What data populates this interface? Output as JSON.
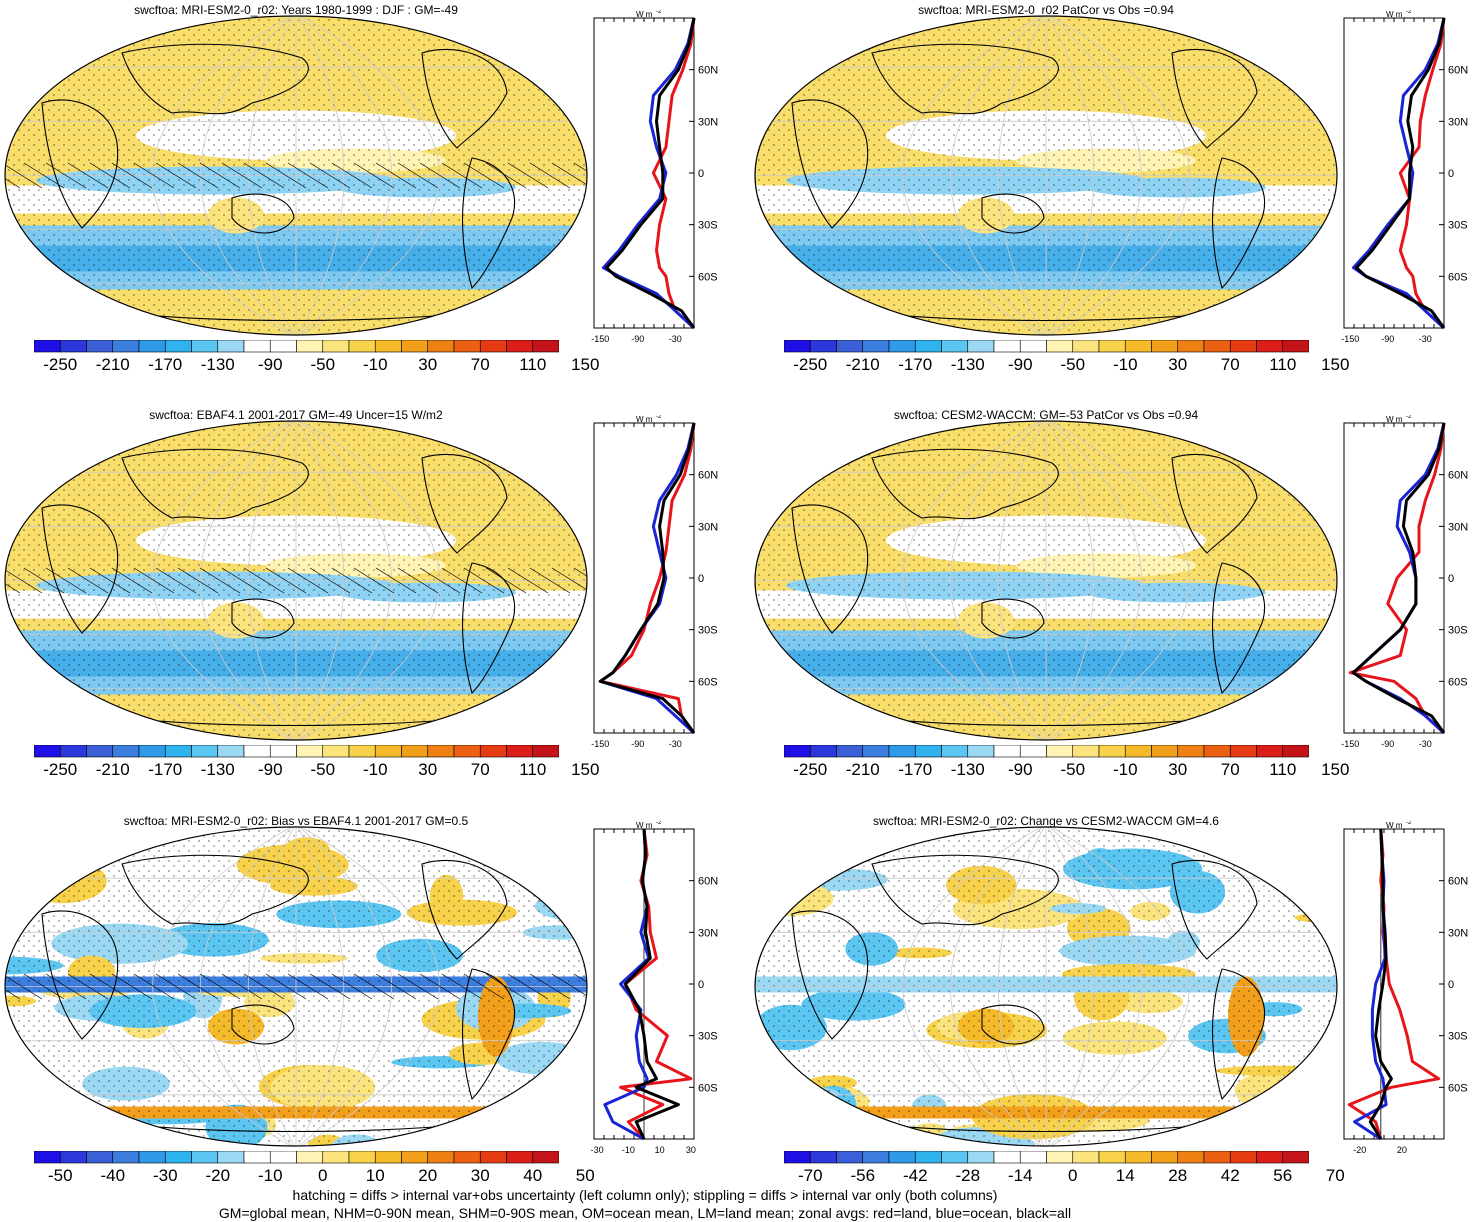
{
  "figure": {
    "footer_line1": "hatching = diffs > internal var+obs uncertainty (left column only); stippling = diffs > internal var only (both columns)",
    "footer_line2": "GM=global mean, NHM=0-90N mean, SHM=0-90S mean, OM=ocean mean, LM=land mean; zonal avgs: red=land, blue=ocean, black=all",
    "zonal_units": "W m",
    "zonal_units_sup": "-2",
    "lat_labels": [
      "60N",
      "30N",
      "0",
      "30S",
      "60S"
    ],
    "colors": {
      "land": "#e8141c",
      "ocean": "#1a24d6",
      "all": "#000000",
      "hatch": "#000000"
    }
  },
  "panels": [
    {
      "id": "p1",
      "title": "swcftoa: MRI-ESM2-0_r02: Years 1980-1999 : DJF : GM=-49",
      "colorbar": [
        "-250",
        "-210",
        "-170",
        "-130",
        "-90",
        "-50",
        "-10",
        "30",
        "70",
        "110",
        "150"
      ],
      "zonal_ticks": [
        "-150",
        "-90",
        "-30"
      ],
      "hatched": true,
      "kind": "abs"
    },
    {
      "id": "p2",
      "title": "swcftoa: MRI-ESM2-0_r02 PatCor vs Obs =0.94",
      "colorbar": [
        "-250",
        "-210",
        "-170",
        "-130",
        "-90",
        "-50",
        "-10",
        "30",
        "70",
        "110",
        "150"
      ],
      "zonal_ticks": [
        "-150",
        "-90",
        "-30"
      ],
      "hatched": false,
      "kind": "abs"
    },
    {
      "id": "p3",
      "title": "swcftoa: EBAF4.1 2001-2017 GM=-49 Uncer=15 W/m2",
      "colorbar": [
        "-250",
        "-210",
        "-170",
        "-130",
        "-90",
        "-50",
        "-10",
        "30",
        "70",
        "110",
        "150"
      ],
      "zonal_ticks": [
        "-150",
        "-90",
        "-30"
      ],
      "hatched": true,
      "kind": "abs"
    },
    {
      "id": "p4",
      "title": "swcftoa: CESM2-WACCM: GM=-53 PatCor vs Obs =0.94",
      "colorbar": [
        "-250",
        "-210",
        "-170",
        "-130",
        "-90",
        "-50",
        "-10",
        "30",
        "70",
        "110",
        "150"
      ],
      "zonal_ticks": [
        "-150",
        "-90",
        "-30"
      ],
      "hatched": false,
      "kind": "abs"
    },
    {
      "id": "p5",
      "title": "swcftoa: MRI-ESM2-0_r02: Bias vs EBAF4.1 2001-2017 GM=0.5",
      "colorbar": [
        "-50",
        "-40",
        "-30",
        "-20",
        "-10",
        "0",
        "10",
        "20",
        "30",
        "40",
        "50"
      ],
      "zonal_ticks": [
        "-30",
        "-10",
        "10",
        "30"
      ],
      "hatched": true,
      "kind": "diff"
    },
    {
      "id": "p6",
      "title": "swcftoa: MRI-ESM2-0_r02: Change vs CESM2-WACCM GM=4.6",
      "colorbar": [
        "-70",
        "-56",
        "-42",
        "-28",
        "-14",
        "0",
        "14",
        "28",
        "42",
        "56",
        "70"
      ],
      "zonal_ticks": [
        "-20",
        "20"
      ],
      "hatched": false,
      "kind": "diff"
    }
  ],
  "chart_data": [
    {
      "type": "line",
      "panel": "p1",
      "title": "swcftoa: MRI-ESM2-0_r02: Years 1980-1999 : DJF : GM=-49",
      "y": [
        90,
        75,
        60,
        45,
        30,
        15,
        0,
        -15,
        -30,
        -45,
        -55,
        -60,
        -70,
        -80,
        -90
      ],
      "xlim": [
        -160,
        0
      ],
      "series": [
        {
          "name": "land",
          "values": [
            0,
            -5,
            -18,
            -35,
            -40,
            -45,
            -65,
            -45,
            -55,
            -60,
            -55,
            -45,
            -40,
            -30,
            0
          ]
        },
        {
          "name": "ocean",
          "values": [
            0,
            -10,
            -30,
            -65,
            -70,
            -60,
            -45,
            -55,
            -90,
            -120,
            -145,
            -120,
            -60,
            -30,
            0
          ]
        },
        {
          "name": "all",
          "values": [
            0,
            -8,
            -25,
            -55,
            -60,
            -55,
            -50,
            -50,
            -85,
            -115,
            -140,
            -125,
            -70,
            -20,
            0
          ]
        }
      ]
    },
    {
      "type": "line",
      "panel": "p2",
      "title": "swcftoa: MRI-ESM2-0_r02 PatCor vs Obs =0.94",
      "y": [
        90,
        75,
        60,
        45,
        30,
        15,
        0,
        -15,
        -30,
        -45,
        -55,
        -60,
        -70,
        -80,
        -90
      ],
      "xlim": [
        -160,
        0
      ],
      "series": [
        {
          "name": "land",
          "values": [
            0,
            -5,
            -18,
            -30,
            -38,
            -40,
            -70,
            -55,
            -60,
            -70,
            -60,
            -50,
            -45,
            -30,
            0
          ]
        },
        {
          "name": "ocean",
          "values": [
            0,
            -10,
            -30,
            -65,
            -70,
            -60,
            -50,
            -55,
            -90,
            -120,
            -145,
            -125,
            -60,
            -30,
            0
          ]
        },
        {
          "name": "all",
          "values": [
            0,
            -8,
            -25,
            -52,
            -58,
            -50,
            -55,
            -55,
            -85,
            -115,
            -140,
            -125,
            -70,
            -20,
            0
          ]
        }
      ]
    },
    {
      "type": "line",
      "panel": "p3",
      "title": "swcftoa: EBAF4.1 2001-2017 GM=-49 Uncer=15 W/m2",
      "y": [
        90,
        75,
        60,
        45,
        30,
        15,
        0,
        -15,
        -30,
        -45,
        -55,
        -60,
        -70,
        -80,
        -90
      ],
      "xlim": [
        -160,
        0
      ],
      "series": [
        {
          "name": "land",
          "values": [
            0,
            -5,
            -15,
            -35,
            -40,
            -45,
            -55,
            -70,
            -80,
            -100,
            -130,
            -150,
            -25,
            -20,
            0
          ]
        },
        {
          "name": "ocean",
          "values": [
            0,
            -10,
            -28,
            -55,
            -65,
            -55,
            -45,
            -55,
            -85,
            -110,
            -130,
            -150,
            -60,
            -30,
            0
          ]
        },
        {
          "name": "all",
          "values": [
            0,
            -8,
            -22,
            -48,
            -55,
            -50,
            -48,
            -58,
            -85,
            -110,
            -130,
            -150,
            -50,
            -20,
            0
          ]
        }
      ]
    },
    {
      "type": "line",
      "panel": "p4",
      "title": "swcftoa: CESM2-WACCM: GM=-53 PatCor vs Obs =0.94",
      "y": [
        90,
        75,
        60,
        45,
        30,
        15,
        0,
        -15,
        -30,
        -45,
        -55,
        -60,
        -70,
        -80,
        -90
      ],
      "xlim": [
        -160,
        0
      ],
      "series": [
        {
          "name": "land",
          "values": [
            0,
            -5,
            -15,
            -30,
            -40,
            -40,
            -75,
            -90,
            -60,
            -70,
            -150,
            -80,
            -45,
            -30,
            0
          ]
        },
        {
          "name": "ocean",
          "values": [
            0,
            -10,
            -30,
            -70,
            -75,
            -55,
            -45,
            -45,
            -70,
            -115,
            -145,
            -125,
            -70,
            -30,
            0
          ]
        },
        {
          "name": "all",
          "values": [
            0,
            -8,
            -25,
            -60,
            -65,
            -50,
            -45,
            -45,
            -70,
            -115,
            -145,
            -125,
            -75,
            -20,
            0
          ]
        }
      ]
    },
    {
      "type": "line",
      "panel": "p5",
      "title": "swcftoa: MRI-ESM2-0_r02: Bias vs EBAF4.1 2001-2017 GM=0.5",
      "y": [
        90,
        75,
        60,
        45,
        30,
        15,
        0,
        -15,
        -30,
        -45,
        -55,
        -60,
        -70,
        -80,
        -90
      ],
      "xlim": [
        -32,
        32
      ],
      "series": [
        {
          "name": "land",
          "values": [
            0,
            2,
            -2,
            3,
            4,
            8,
            -12,
            -5,
            15,
            8,
            30,
            -15,
            12,
            -10,
            0
          ]
        },
        {
          "name": "ocean",
          "values": [
            0,
            1,
            -1,
            2,
            -2,
            3,
            -15,
            -2,
            -5,
            -3,
            2,
            0,
            -25,
            -20,
            0
          ]
        },
        {
          "name": "all",
          "values": [
            0,
            1,
            -1,
            2,
            1,
            4,
            -12,
            -3,
            0,
            2,
            8,
            -5,
            22,
            -5,
            0
          ]
        }
      ]
    },
    {
      "type": "line",
      "panel": "p6",
      "title": "swcftoa: MRI-ESM2-0_r02: Change vs CESM2-WACCM GM=4.6",
      "y": [
        90,
        75,
        60,
        45,
        30,
        15,
        0,
        -15,
        -30,
        -45,
        -55,
        -60,
        -70,
        -80,
        -90
      ],
      "xlim": [
        -35,
        60
      ],
      "series": [
        {
          "name": "land",
          "values": [
            0,
            2,
            0,
            3,
            2,
            5,
            8,
            18,
            25,
            30,
            55,
            10,
            -30,
            -5,
            0
          ]
        },
        {
          "name": "ocean",
          "values": [
            0,
            1,
            3,
            2,
            3,
            4,
            -5,
            -8,
            -8,
            -5,
            2,
            3,
            5,
            -25,
            0
          ]
        },
        {
          "name": "all",
          "values": [
            0,
            1,
            2,
            2,
            4,
            5,
            2,
            -2,
            -5,
            0,
            10,
            5,
            0,
            -10,
            0
          ]
        }
      ]
    }
  ]
}
